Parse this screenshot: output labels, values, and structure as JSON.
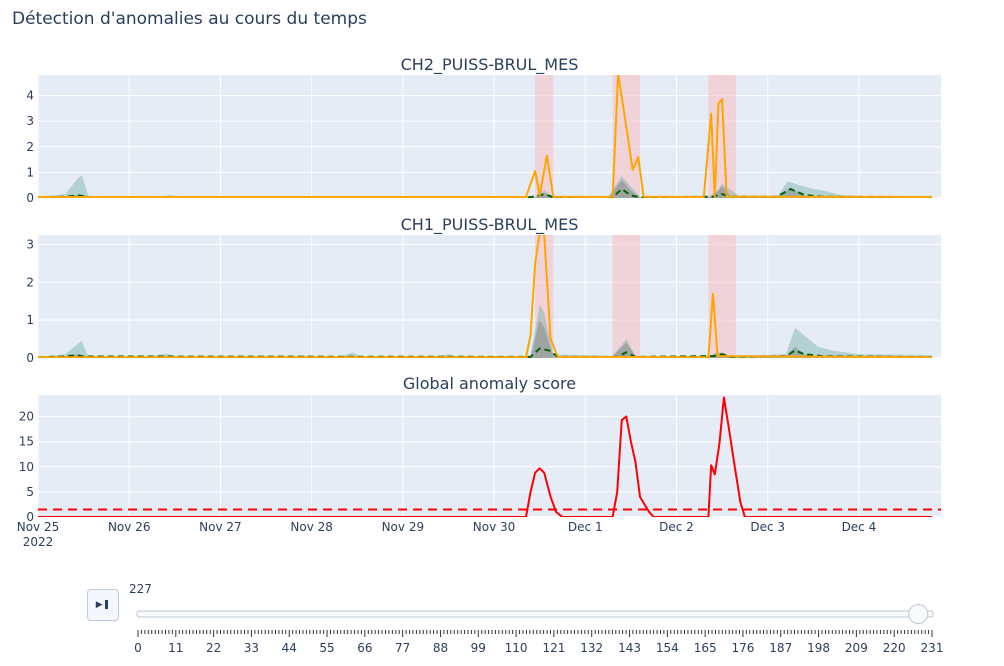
{
  "title": "Détection d'anomalies au cours du temps",
  "colors": {
    "plot_bg": "#e5ecf6",
    "grid": "#ffffff",
    "signal": "#ffa500",
    "prediction": "#006400",
    "band_inner": "#7f7f7f",
    "band_outer": "#6aaa9e",
    "anomaly_zone": "#f7c1c7",
    "score": "#ff0000",
    "threshold": "#ff0000"
  },
  "player": {
    "play_icon": "play-pause-icon",
    "current_value": "227",
    "current_step": 227,
    "min_step": 0,
    "max_step": 231,
    "tick_labels": [
      "0",
      "11",
      "22",
      "33",
      "44",
      "55",
      "66",
      "77",
      "88",
      "99",
      "110",
      "121",
      "132",
      "143",
      "154",
      "165",
      "176",
      "187",
      "198",
      "209",
      "220",
      "231"
    ]
  },
  "chart_data": [
    {
      "type": "line",
      "title": "CH2_PUISS-BRUL_MES",
      "x_unit": "days since Nov 25 2022 00:00",
      "xlim": [
        0,
        9.9
      ],
      "ylim": [
        0,
        4.8
      ],
      "yticks": [
        0,
        1,
        2,
        3,
        4
      ],
      "anomaly_zones": [
        [
          5.45,
          5.65
        ],
        [
          6.3,
          6.6
        ],
        [
          7.35,
          7.65
        ]
      ],
      "signal": [
        [
          0,
          0.04
        ],
        [
          4.1,
          0.04
        ],
        [
          5.35,
          0.04
        ],
        [
          5.45,
          1.05
        ],
        [
          5.5,
          0.1
        ],
        [
          5.58,
          1.65
        ],
        [
          5.65,
          0.05
        ],
        [
          6.2,
          0.04
        ],
        [
          6.3,
          0.05
        ],
        [
          6.36,
          4.85
        ],
        [
          6.44,
          3.0
        ],
        [
          6.52,
          1.1
        ],
        [
          6.58,
          1.6
        ],
        [
          6.64,
          0.05
        ],
        [
          7.3,
          0.04
        ],
        [
          7.38,
          3.3
        ],
        [
          7.42,
          0.05
        ],
        [
          7.46,
          3.7
        ],
        [
          7.5,
          3.85
        ],
        [
          7.55,
          0.05
        ],
        [
          9.8,
          0.04
        ]
      ],
      "prediction": [
        [
          0,
          0.03
        ],
        [
          0.3,
          0.05
        ],
        [
          0.45,
          0.1
        ],
        [
          0.55,
          0.04
        ],
        [
          5.4,
          0.03
        ],
        [
          5.55,
          0.15
        ],
        [
          5.65,
          0.03
        ],
        [
          6.3,
          0.03
        ],
        [
          6.4,
          0.35
        ],
        [
          6.5,
          0.1
        ],
        [
          6.6,
          0.03
        ],
        [
          7.4,
          0.05
        ],
        [
          7.5,
          0.15
        ],
        [
          7.6,
          0.05
        ],
        [
          8.1,
          0.05
        ],
        [
          8.25,
          0.35
        ],
        [
          8.4,
          0.12
        ],
        [
          8.6,
          0.05
        ],
        [
          9.8,
          0.03
        ]
      ],
      "band_inner": [
        [
          0,
          0.02
        ],
        [
          0.4,
          0.1
        ],
        [
          0.5,
          0.12
        ],
        [
          0.6,
          0.02
        ],
        [
          5.45,
          0.02
        ],
        [
          5.55,
          0.2
        ],
        [
          5.65,
          0.02
        ],
        [
          6.25,
          0.02
        ],
        [
          6.4,
          0.7
        ],
        [
          6.5,
          0.3
        ],
        [
          6.6,
          0.02
        ],
        [
          7.4,
          0.05
        ],
        [
          7.5,
          0.45
        ],
        [
          7.6,
          0.05
        ],
        [
          8.1,
          0.05
        ],
        [
          8.25,
          0.4
        ],
        [
          8.4,
          0.1
        ],
        [
          8.6,
          0.02
        ],
        [
          9.8,
          0.02
        ]
      ],
      "band_outer": [
        [
          0,
          0.03
        ],
        [
          0.3,
          0.15
        ],
        [
          0.42,
          0.7
        ],
        [
          0.48,
          0.9
        ],
        [
          0.55,
          0.1
        ],
        [
          0.7,
          0.05
        ],
        [
          1.35,
          0.05
        ],
        [
          1.45,
          0.12
        ],
        [
          1.55,
          0.05
        ],
        [
          5.45,
          0.04
        ],
        [
          5.55,
          0.3
        ],
        [
          5.65,
          0.04
        ],
        [
          6.25,
          0.04
        ],
        [
          6.4,
          0.85
        ],
        [
          6.5,
          0.45
        ],
        [
          6.6,
          0.04
        ],
        [
          7.35,
          0.04
        ],
        [
          7.45,
          0.3
        ],
        [
          7.5,
          0.55
        ],
        [
          7.6,
          0.3
        ],
        [
          7.7,
          0.05
        ],
        [
          8.1,
          0.05
        ],
        [
          8.22,
          0.65
        ],
        [
          8.35,
          0.5
        ],
        [
          8.5,
          0.35
        ],
        [
          8.6,
          0.3
        ],
        [
          8.8,
          0.12
        ],
        [
          9.0,
          0.05
        ],
        [
          9.8,
          0.04
        ]
      ]
    },
    {
      "type": "line",
      "title": "CH1_PUISS-BRUL_MES",
      "x_unit": "days since Nov 25 2022 00:00",
      "xlim": [
        0,
        9.9
      ],
      "ylim": [
        0,
        3.25
      ],
      "yticks": [
        0,
        1,
        2,
        3
      ],
      "anomaly_zones": [
        [
          5.45,
          5.65
        ],
        [
          6.3,
          6.6
        ],
        [
          7.35,
          7.65
        ]
      ],
      "signal": [
        [
          0,
          0.02
        ],
        [
          5.35,
          0.02
        ],
        [
          5.4,
          0.6
        ],
        [
          5.45,
          2.5
        ],
        [
          5.5,
          3.3
        ],
        [
          5.55,
          3.25
        ],
        [
          5.62,
          0.5
        ],
        [
          5.7,
          0.03
        ],
        [
          7.35,
          0.02
        ],
        [
          7.4,
          1.7
        ],
        [
          7.45,
          0.05
        ],
        [
          9.8,
          0.02
        ]
      ],
      "prediction": [
        [
          0,
          0.02
        ],
        [
          0.3,
          0.04
        ],
        [
          0.42,
          0.08
        ],
        [
          0.5,
          0.04
        ],
        [
          5.4,
          0.03
        ],
        [
          5.5,
          0.25
        ],
        [
          5.6,
          0.2
        ],
        [
          5.7,
          0.03
        ],
        [
          6.35,
          0.03
        ],
        [
          6.45,
          0.15
        ],
        [
          6.55,
          0.03
        ],
        [
          7.4,
          0.05
        ],
        [
          7.5,
          0.1
        ],
        [
          7.6,
          0.03
        ],
        [
          8.2,
          0.05
        ],
        [
          8.3,
          0.2
        ],
        [
          8.4,
          0.1
        ],
        [
          8.6,
          0.05
        ],
        [
          9.8,
          0.02
        ]
      ],
      "band_inner": [
        [
          0,
          0.02
        ],
        [
          0.3,
          0.05
        ],
        [
          0.45,
          0.1
        ],
        [
          0.55,
          0.02
        ],
        [
          5.4,
          0.05
        ],
        [
          5.5,
          1.0
        ],
        [
          5.55,
          0.8
        ],
        [
          5.65,
          0.05
        ],
        [
          6.3,
          0.05
        ],
        [
          6.45,
          0.4
        ],
        [
          6.55,
          0.05
        ],
        [
          7.4,
          0.05
        ],
        [
          7.5,
          0.15
        ],
        [
          7.6,
          0.05
        ],
        [
          8.2,
          0.05
        ],
        [
          8.3,
          0.3
        ],
        [
          8.4,
          0.1
        ],
        [
          8.6,
          0.02
        ],
        [
          9.8,
          0.02
        ]
      ],
      "band_outer": [
        [
          0,
          0.03
        ],
        [
          0.3,
          0.1
        ],
        [
          0.42,
          0.35
        ],
        [
          0.48,
          0.45
        ],
        [
          0.55,
          0.05
        ],
        [
          1.2,
          0.03
        ],
        [
          1.4,
          0.12
        ],
        [
          1.55,
          0.03
        ],
        [
          3.3,
          0.03
        ],
        [
          3.45,
          0.15
        ],
        [
          3.55,
          0.03
        ],
        [
          4.3,
          0.03
        ],
        [
          4.5,
          0.1
        ],
        [
          4.6,
          0.03
        ],
        [
          5.4,
          0.05
        ],
        [
          5.5,
          1.4
        ],
        [
          5.55,
          1.2
        ],
        [
          5.65,
          0.1
        ],
        [
          6.3,
          0.05
        ],
        [
          6.45,
          0.5
        ],
        [
          6.55,
          0.05
        ],
        [
          7.35,
          0.05
        ],
        [
          7.45,
          0.15
        ],
        [
          7.6,
          0.05
        ],
        [
          8.2,
          0.1
        ],
        [
          8.3,
          0.8
        ],
        [
          8.4,
          0.6
        ],
        [
          8.55,
          0.3
        ],
        [
          8.7,
          0.2
        ],
        [
          9.0,
          0.1
        ],
        [
          9.8,
          0.08
        ]
      ]
    },
    {
      "type": "line",
      "title": "Global anomaly score",
      "x_unit": "days since Nov 25 2022 00:00",
      "xlim": [
        0,
        9.9
      ],
      "ylim": [
        0,
        24.3
      ],
      "yticks": [
        0,
        5,
        10,
        15,
        20
      ],
      "xticks": [
        {
          "value": 0,
          "label": "Nov 25",
          "label2": "2022"
        },
        {
          "value": 1,
          "label": "Nov 26"
        },
        {
          "value": 2,
          "label": "Nov 27"
        },
        {
          "value": 3,
          "label": "Nov 28"
        },
        {
          "value": 4,
          "label": "Nov 29"
        },
        {
          "value": 5,
          "label": "Nov 30"
        },
        {
          "value": 6,
          "label": "Dec 1"
        },
        {
          "value": 7,
          "label": "Dec 2"
        },
        {
          "value": 8,
          "label": "Dec 3"
        },
        {
          "value": 9,
          "label": "Dec 4"
        }
      ],
      "threshold": 1.5,
      "score": [
        [
          0,
          0
        ],
        [
          5.35,
          0
        ],
        [
          5.4,
          5
        ],
        [
          5.45,
          8.8
        ],
        [
          5.5,
          9.7
        ],
        [
          5.55,
          8.8
        ],
        [
          5.62,
          4
        ],
        [
          5.68,
          1
        ],
        [
          5.75,
          0
        ],
        [
          6.3,
          0
        ],
        [
          6.35,
          5
        ],
        [
          6.4,
          19.3
        ],
        [
          6.45,
          20
        ],
        [
          6.5,
          15
        ],
        [
          6.55,
          11
        ],
        [
          6.6,
          4
        ],
        [
          6.7,
          1
        ],
        [
          6.75,
          0
        ],
        [
          7.35,
          0
        ],
        [
          7.38,
          10.3
        ],
        [
          7.42,
          8.5
        ],
        [
          7.47,
          14.5
        ],
        [
          7.52,
          23.8
        ],
        [
          7.58,
          17
        ],
        [
          7.63,
          11
        ],
        [
          7.7,
          3
        ],
        [
          7.75,
          0
        ],
        [
          9.8,
          0
        ]
      ]
    }
  ]
}
